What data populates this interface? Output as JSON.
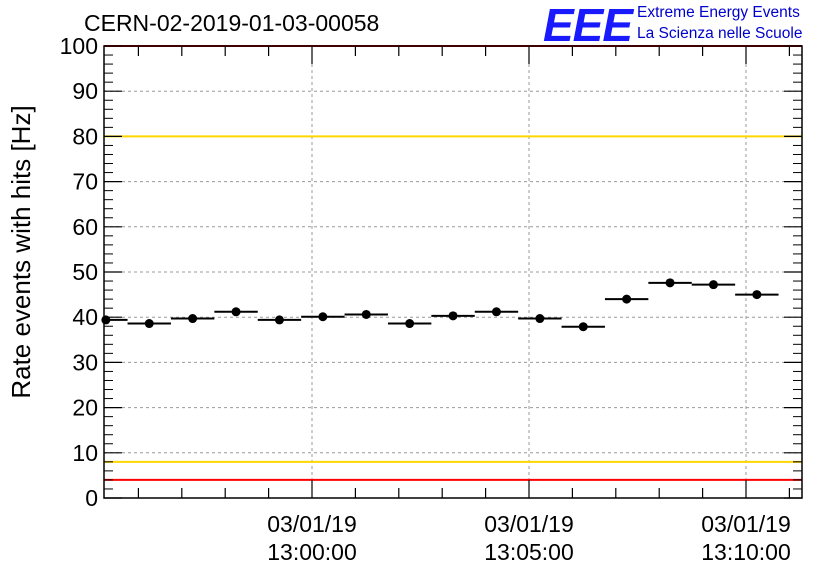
{
  "header": {
    "title": "CERN-02-2019-01-03-00058"
  },
  "logo": {
    "mark": "EEE",
    "line1": "Extreme Energy Events",
    "line2": "La Scienza nelle Scuole",
    "color": "#0000cc"
  },
  "chart_data": {
    "type": "scatter",
    "ylabel": "Rate events with hits [Hz]",
    "ylim": [
      0,
      100
    ],
    "y_ticks": [
      0,
      10,
      20,
      30,
      40,
      50,
      60,
      70,
      80,
      90,
      100
    ],
    "x_ticks": [
      {
        "date": "03/01/19",
        "time": "13:00:00"
      },
      {
        "date": "03/01/19",
        "time": "13:05:00"
      },
      {
        "date": "03/01/19",
        "time": "13:10:00"
      }
    ],
    "grid": true,
    "reference_lines": [
      {
        "y": 100,
        "color": "#ff0000"
      },
      {
        "y": 80,
        "color": "#ffd700"
      },
      {
        "y": 8,
        "color": "#ffd700"
      },
      {
        "y": 4,
        "color": "#ff0000"
      }
    ],
    "points": [
      {
        "t": "12:55:15",
        "y": 39.4
      },
      {
        "t": "12:56:15",
        "y": 38.6
      },
      {
        "t": "12:57:15",
        "y": 39.7
      },
      {
        "t": "12:58:15",
        "y": 41.2
      },
      {
        "t": "12:59:15",
        "y": 39.4
      },
      {
        "t": "13:00:15",
        "y": 40.1
      },
      {
        "t": "13:01:15",
        "y": 40.6
      },
      {
        "t": "13:02:15",
        "y": 38.6
      },
      {
        "t": "13:03:15",
        "y": 40.3
      },
      {
        "t": "13:04:15",
        "y": 41.2
      },
      {
        "t": "13:05:15",
        "y": 39.7
      },
      {
        "t": "13:06:15",
        "y": 37.9
      },
      {
        "t": "13:07:15",
        "y": 44.0
      },
      {
        "t": "13:08:15",
        "y": 47.6
      },
      {
        "t": "13:09:15",
        "y": 47.2
      },
      {
        "t": "13:10:15",
        "y": 45.0
      }
    ],
    "bin_width_seconds": 60
  }
}
